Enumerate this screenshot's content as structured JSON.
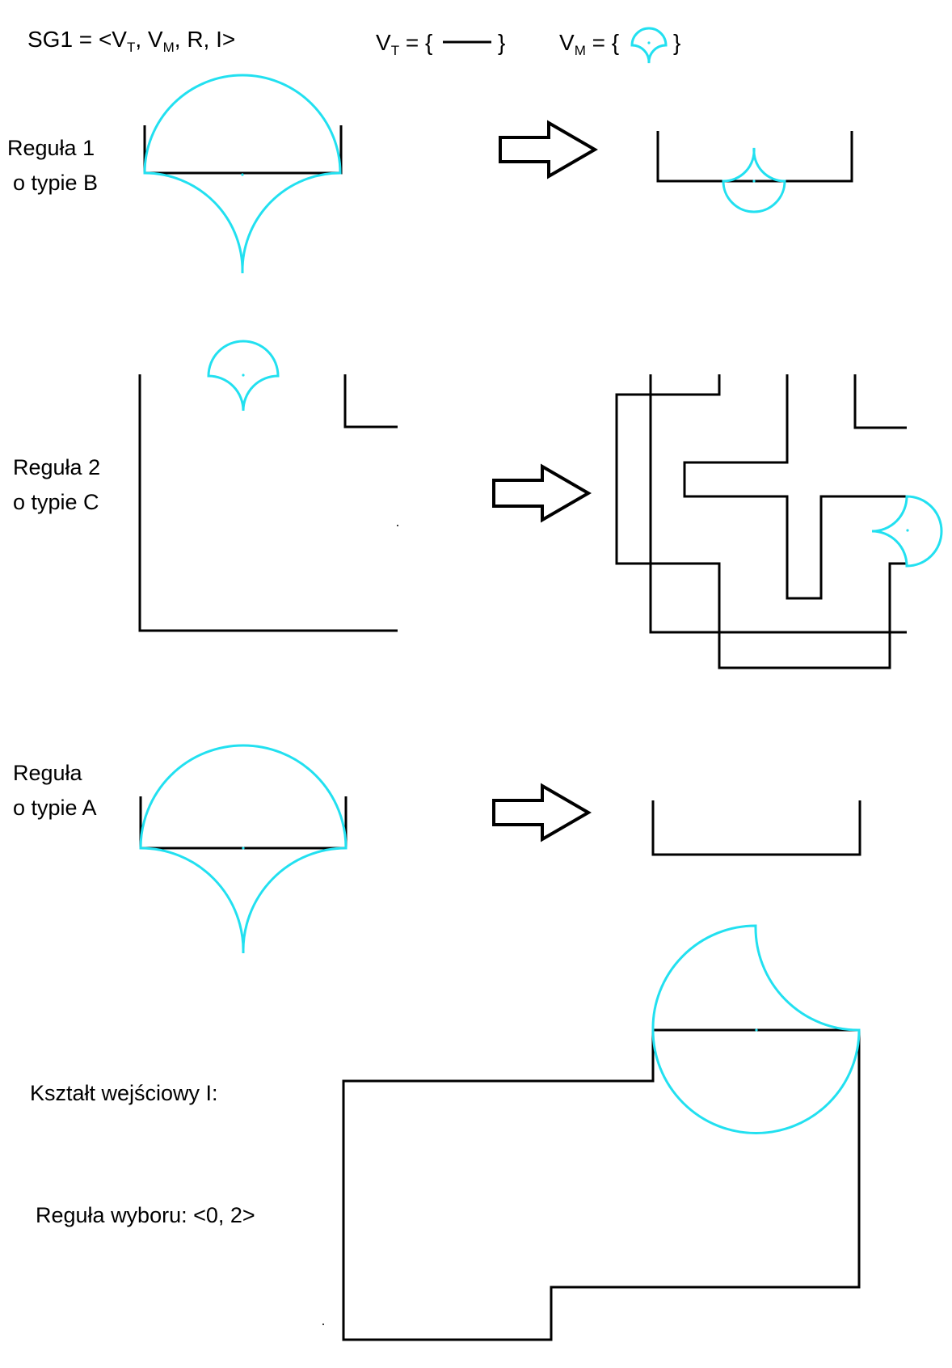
{
  "header": {
    "grammar_main": "SG1 = <V",
    "grammar_t": "T",
    "grammar_sep1": ", V",
    "grammar_m": "M",
    "grammar_rest": ", R, I>",
    "vt_prefix": "V",
    "vt_sub": "T",
    "vt_eq": " = {",
    "vt_close": "}",
    "vm_prefix": "V",
    "vm_sub": "M",
    "vm_eq": " = {",
    "vm_close": "}"
  },
  "rules": [
    {
      "line1": "Reguła 1",
      "line2": "o typie B"
    },
    {
      "line1": "Reguła 2",
      "line2": "o typie C"
    },
    {
      "line1": "Reguła",
      "line2": "o typie A"
    }
  ],
  "input_shape_label": "Kształt wejściowy I:",
  "selection_rule_label": "Reguła wyboru: <0, 2>",
  "colors": {
    "marker": "#22e0f0",
    "terminal": "#000000"
  }
}
